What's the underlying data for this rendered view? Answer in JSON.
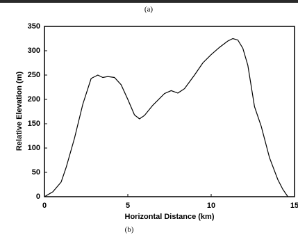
{
  "captions": [
    "(a)",
    "(b)"
  ],
  "chart_data": {
    "type": "line",
    "xlabel": "Horizontal Distance (km)",
    "ylabel": "Relative Elevation (m)",
    "x": [
      0,
      0.5,
      1,
      1.3,
      1.8,
      2.3,
      2.8,
      3.2,
      3.5,
      3.8,
      4.2,
      4.6,
      5,
      5.4,
      5.7,
      6,
      6.5,
      7.2,
      7.6,
      8,
      8.4,
      9,
      9.5,
      10,
      10.5,
      11,
      11.3,
      11.6,
      11.9,
      12.2,
      12.6,
      13,
      13.5,
      14,
      14.3,
      14.6
    ],
    "series": [
      {
        "color": "#000000",
        "values": [
          0,
          10,
          30,
          60,
          120,
          190,
          243,
          250,
          245,
          247,
          245,
          230,
          200,
          168,
          160,
          167,
          188,
          212,
          218,
          213,
          222,
          250,
          275,
          292,
          307,
          320,
          325,
          322,
          305,
          270,
          185,
          145,
          80,
          35,
          15,
          0
        ]
      }
    ],
    "xlim": [
      0,
      15
    ],
    "ylim": [
      0,
      350
    ],
    "xticks": [
      0,
      5,
      10,
      15
    ],
    "yticks": [
      0,
      50,
      100,
      150,
      200,
      250,
      300,
      350
    ],
    "grid": false
  }
}
